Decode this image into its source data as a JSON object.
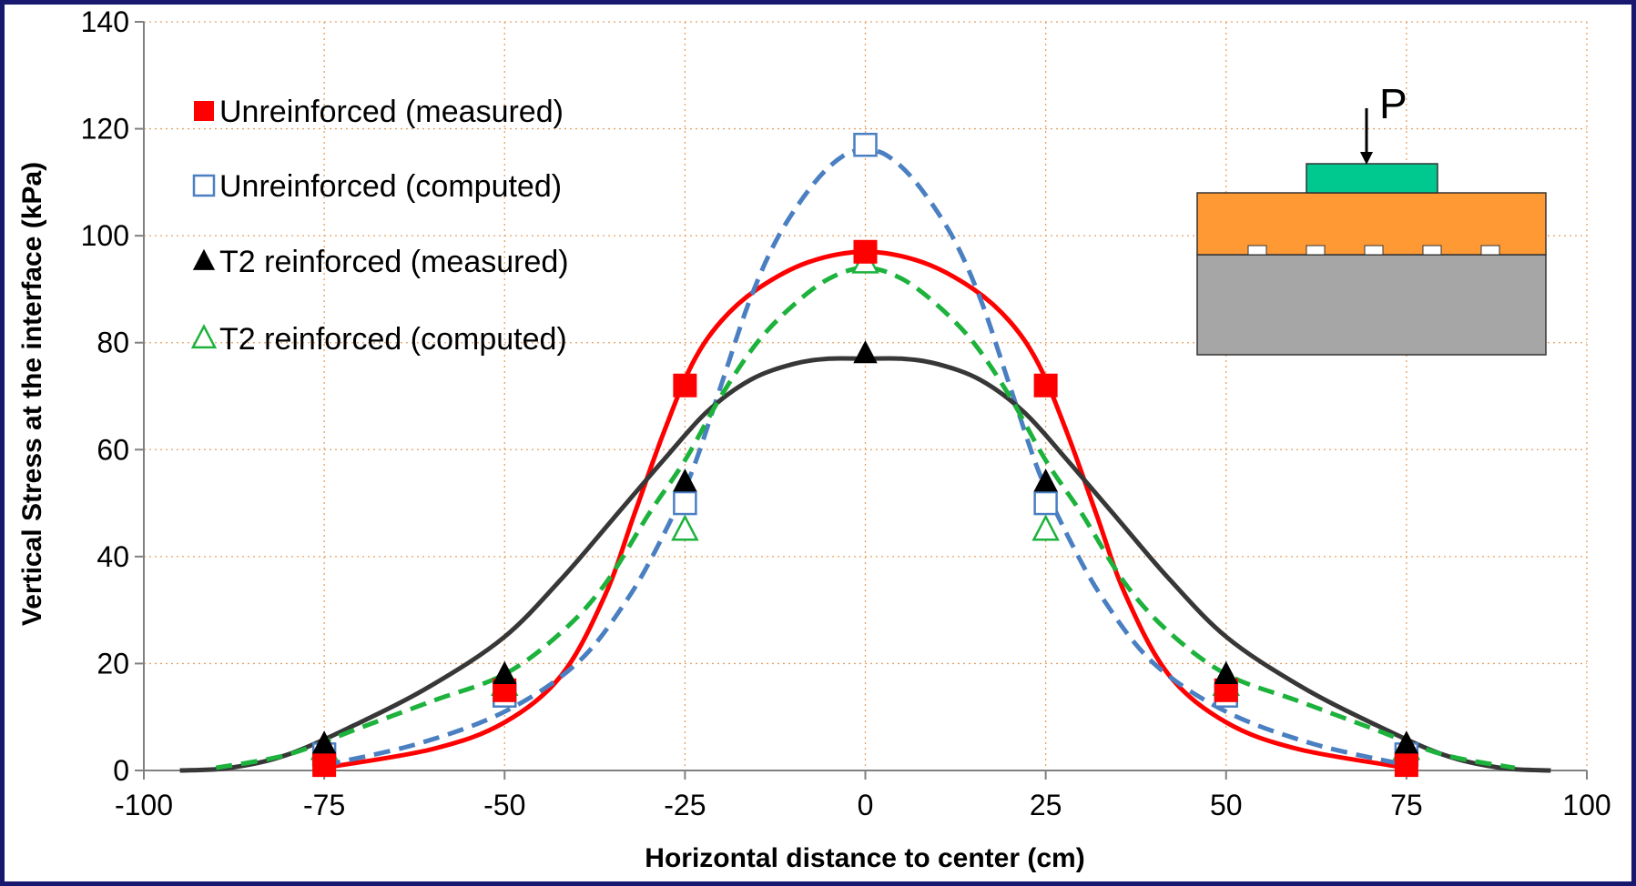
{
  "chart_data": {
    "type": "line",
    "xlabel": "Horizontal distance to center (cm)",
    "ylabel": "Vertical Stress at the interface (kPa)",
    "xlim": [
      -100,
      100
    ],
    "ylim": [
      0,
      140
    ],
    "x_ticks": [
      -100,
      -75,
      -50,
      -25,
      0,
      25,
      50,
      75,
      100
    ],
    "y_ticks": [
      0,
      20,
      40,
      60,
      80,
      100,
      120,
      140
    ],
    "grid": true,
    "legend_position": "top-left",
    "series": [
      {
        "name": "Unreinforced (measured)",
        "marker": "filled-square",
        "color": "#ff0000",
        "points": [
          [
            -75,
            1
          ],
          [
            -50,
            15
          ],
          [
            -25,
            72
          ],
          [
            0,
            97
          ],
          [
            25,
            72
          ],
          [
            50,
            15
          ],
          [
            75,
            1
          ]
        ]
      },
      {
        "name": "Unreinforced (computed)",
        "marker": "open-square",
        "color": "#4a7fc1",
        "points": [
          [
            -75,
            3
          ],
          [
            -50,
            14
          ],
          [
            -25,
            50
          ],
          [
            0,
            117
          ],
          [
            25,
            50
          ],
          [
            50,
            14
          ],
          [
            75,
            3
          ]
        ]
      },
      {
        "name": "T2 reinforced (measured)",
        "marker": "filled-triangle",
        "color": "#000000",
        "points": [
          [
            -75,
            5
          ],
          [
            -50,
            18
          ],
          [
            -25,
            54
          ],
          [
            0,
            78
          ],
          [
            25,
            54
          ],
          [
            50,
            18
          ],
          [
            75,
            5
          ]
        ]
      },
      {
        "name": "T2 reinforced (computed)",
        "marker": "open-triangle",
        "color": "#1cb23c",
        "points": [
          [
            -75,
            4
          ],
          [
            -50,
            16
          ],
          [
            -25,
            45
          ],
          [
            0,
            95
          ],
          [
            25,
            45
          ],
          [
            50,
            16
          ],
          [
            75,
            4
          ]
        ]
      }
    ],
    "curves": [
      {
        "series": "Unreinforced (measured)",
        "color": "#ff0000",
        "dashed": false,
        "points": [
          [
            -75,
            0.5
          ],
          [
            -60,
            4
          ],
          [
            -50,
            9
          ],
          [
            -42,
            18
          ],
          [
            -36,
            33
          ],
          [
            -32,
            48
          ],
          [
            -28,
            63
          ],
          [
            -24,
            76
          ],
          [
            -20,
            84
          ],
          [
            -15,
            90
          ],
          [
            -8,
            95
          ],
          [
            0,
            97
          ],
          [
            8,
            95
          ],
          [
            15,
            90
          ],
          [
            20,
            84
          ],
          [
            24,
            76
          ],
          [
            28,
            63
          ],
          [
            32,
            48
          ],
          [
            36,
            33
          ],
          [
            42,
            18
          ],
          [
            50,
            9
          ],
          [
            60,
            4
          ],
          [
            75,
            0.5
          ]
        ]
      },
      {
        "series": "Unreinforced (computed)",
        "color": "#4a7fc1",
        "dashed": true,
        "points": [
          [
            -75,
            1
          ],
          [
            -62,
            5
          ],
          [
            -50,
            11
          ],
          [
            -40,
            20
          ],
          [
            -33,
            32
          ],
          [
            -28,
            44
          ],
          [
            -24,
            56
          ],
          [
            -20,
            72
          ],
          [
            -16,
            88
          ],
          [
            -12,
            100
          ],
          [
            -7,
            110
          ],
          [
            -3,
            115
          ],
          [
            0,
            116
          ],
          [
            3,
            115
          ],
          [
            7,
            110
          ],
          [
            12,
            100
          ],
          [
            16,
            88
          ],
          [
            20,
            72
          ],
          [
            24,
            56
          ],
          [
            28,
            44
          ],
          [
            33,
            32
          ],
          [
            40,
            20
          ],
          [
            50,
            11
          ],
          [
            62,
            5
          ],
          [
            75,
            1
          ]
        ]
      },
      {
        "series": "T2 reinforced (measured)",
        "color": "#373737",
        "dashed": false,
        "points": [
          [
            -95,
            0
          ],
          [
            -88,
            0.5
          ],
          [
            -80,
            3
          ],
          [
            -70,
            9
          ],
          [
            -60,
            16
          ],
          [
            -50,
            25
          ],
          [
            -42,
            36
          ],
          [
            -35,
            47
          ],
          [
            -28,
            58
          ],
          [
            -22,
            67
          ],
          [
            -16,
            73
          ],
          [
            -10,
            76
          ],
          [
            -5,
            77
          ],
          [
            0,
            77
          ],
          [
            5,
            77
          ],
          [
            10,
            76
          ],
          [
            16,
            73
          ],
          [
            22,
            67
          ],
          [
            28,
            58
          ],
          [
            35,
            47
          ],
          [
            42,
            36
          ],
          [
            50,
            25
          ],
          [
            60,
            16
          ],
          [
            70,
            9
          ],
          [
            80,
            3
          ],
          [
            88,
            0.5
          ],
          [
            95,
            0
          ]
        ]
      },
      {
        "series": "T2 reinforced (computed)",
        "color": "#1cb23c",
        "dashed": true,
        "points": [
          [
            -90,
            0.5
          ],
          [
            -80,
            3
          ],
          [
            -70,
            8
          ],
          [
            -60,
            13
          ],
          [
            -50,
            18
          ],
          [
            -42,
            26
          ],
          [
            -36,
            35
          ],
          [
            -30,
            48
          ],
          [
            -25,
            58
          ],
          [
            -20,
            70
          ],
          [
            -15,
            80
          ],
          [
            -10,
            87
          ],
          [
            -5,
            92
          ],
          [
            0,
            94
          ],
          [
            5,
            92
          ],
          [
            10,
            87
          ],
          [
            15,
            80
          ],
          [
            20,
            70
          ],
          [
            25,
            58
          ],
          [
            30,
            48
          ],
          [
            36,
            35
          ],
          [
            42,
            26
          ],
          [
            50,
            18
          ],
          [
            60,
            13
          ],
          [
            70,
            8
          ],
          [
            80,
            3
          ],
          [
            90,
            0.5
          ]
        ]
      }
    ],
    "inset": {
      "label": "P",
      "colors": {
        "footing": "#00c98f",
        "layer": "#ff9933",
        "subgrade": "#a6a6a6"
      }
    },
    "colors": {
      "frame": "#18186e",
      "grid": "#e8a060",
      "axis": "#808080"
    }
  }
}
